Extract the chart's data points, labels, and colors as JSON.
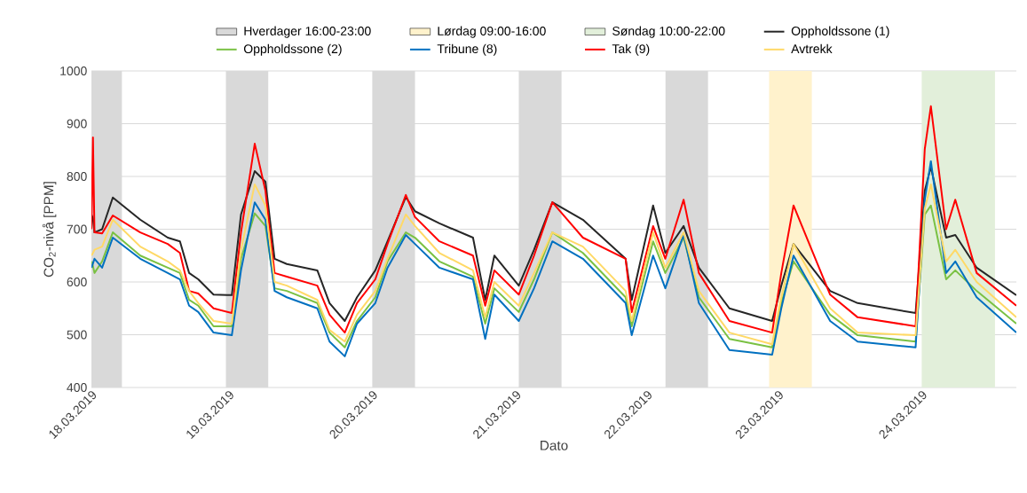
{
  "chart_data": {
    "type": "line",
    "xlabel": "Dato",
    "ylabel": "CO$_{2}$-nivå [PPM]",
    "x": [
      "2019-03-18T18:00",
      "2019-03-18T18:15",
      "2019-03-18T18:30",
      "2019-03-18T19:45",
      "2019-03-18T21:30",
      "2019-03-19T02:00",
      "2019-03-19T06:30",
      "2019-03-19T08:30",
      "2019-03-19T10:00",
      "2019-03-19T11:30",
      "2019-03-19T14:00",
      "2019-03-19T17:00",
      "2019-03-19T18:30",
      "2019-03-19T20:45",
      "2019-03-19T22:30",
      "2019-03-20T00:00",
      "2019-03-20T02:00",
      "2019-03-20T07:00",
      "2019-03-20T09:00",
      "2019-03-20T11:30",
      "2019-03-20T13:30",
      "2019-03-20T16:30",
      "2019-03-20T18:30",
      "2019-03-20T21:30",
      "2019-03-20T23:00",
      "2019-03-21T03:00",
      "2019-03-21T08:30",
      "2019-03-21T10:30",
      "2019-03-21T12:00",
      "2019-03-21T16:00",
      "2019-03-21T18:30",
      "2019-03-21T21:30",
      "2019-03-22T02:30",
      "2019-03-22T09:30",
      "2019-03-22T10:30",
      "2019-03-22T14:00",
      "2019-03-22T16:00",
      "2019-03-22T19:00",
      "2019-03-22T21:30",
      "2019-03-23T02:30",
      "2019-03-23T09:30",
      "2019-03-23T11:00",
      "2019-03-23T13:00",
      "2019-03-23T19:00",
      "2019-03-23T23:30",
      "2019-03-24T09:00",
      "2019-03-24T10:30",
      "2019-03-24T11:30",
      "2019-03-24T14:00",
      "2019-03-24T15:30",
      "2019-03-24T19:00",
      "2019-03-25T01:30"
    ],
    "series": [
      {
        "name": "Oppholdssone (1)",
        "color": "#262626",
        "values": [
          728,
          720,
          694,
          700,
          760,
          718,
          684,
          677,
          617,
          605,
          576,
          575,
          728,
          810,
          790,
          644,
          634,
          622,
          560,
          526,
          571,
          622,
          677,
          761,
          734,
          711,
          684,
          566,
          650,
          593,
          661,
          751,
          718,
          644,
          566,
          745,
          655,
          706,
          627,
          550,
          526,
          593,
          672,
          583,
          560,
          541,
          773,
          818,
          684,
          689,
          627,
          575
        ]
      },
      {
        "name": "Oppholdssone (2)",
        "color": "#7ac143",
        "values": [
          639,
          630,
          617,
          639,
          694,
          650,
          627,
          617,
          566,
          555,
          516,
          516,
          644,
          730,
          706,
          588,
          583,
          560,
          504,
          476,
          526,
          571,
          639,
          694,
          684,
          639,
          610,
          521,
          588,
          543,
          605,
          694,
          655,
          571,
          516,
          677,
          617,
          684,
          571,
          492,
          476,
          560,
          639,
          538,
          499,
          487,
          728,
          745,
          605,
          622,
          583,
          521
        ]
      },
      {
        "name": "Tribune (8)",
        "color": "#0070c0",
        "values": [
          627,
          635,
          644,
          627,
          684,
          644,
          617,
          605,
          555,
          543,
          504,
          499,
          622,
          751,
          718,
          583,
          571,
          550,
          487,
          459,
          521,
          560,
          627,
          689,
          672,
          627,
          605,
          492,
          576,
          526,
          588,
          677,
          644,
          560,
          499,
          650,
          588,
          690,
          560,
          471,
          462,
          550,
          650,
          526,
          487,
          476,
          756,
          829,
          617,
          639,
          571,
          504
        ]
      },
      {
        "name": "Tak (9)",
        "color": "#ff0000",
        "values": [
          700,
          874,
          694,
          692,
          726,
          694,
          672,
          655,
          583,
          578,
          550,
          541,
          694,
          862,
          773,
          617,
          610,
          593,
          538,
          504,
          560,
          605,
          672,
          765,
          723,
          677,
          650,
          555,
          622,
          576,
          650,
          751,
          684,
          644,
          543,
          706,
          644,
          756,
          617,
          526,
          504,
          617,
          745,
          576,
          533,
          516,
          852,
          933,
          700,
          756,
          617,
          555
        ]
      },
      {
        "name": "Avtrekk",
        "color": "#ffd966",
        "values": [
          650,
          655,
          661,
          667,
          718,
          667,
          639,
          622,
          583,
          560,
          526,
          521,
          661,
          785,
          745,
          600,
          593,
          566,
          509,
          487,
          538,
          583,
          644,
          728,
          706,
          655,
          622,
          533,
          600,
          555,
          617,
          694,
          667,
          583,
          526,
          694,
          627,
          694,
          583,
          504,
          482,
          571,
          672,
          550,
          504,
          499,
          739,
          785,
          639,
          661,
          600,
          533
        ]
      }
    ],
    "bands": [
      {
        "axis": "x",
        "from": "2019-03-18T18:00",
        "to": "2019-03-18T23:00",
        "label": "Hverdager 16:00-23:00",
        "color": "#d9d9d9"
      },
      {
        "axis": "x",
        "from": "2019-03-19T16:00",
        "to": "2019-03-19T23:00",
        "color": "#d9d9d9"
      },
      {
        "axis": "x",
        "from": "2019-03-20T16:00",
        "to": "2019-03-20T23:00",
        "color": "#d9d9d9"
      },
      {
        "axis": "x",
        "from": "2019-03-21T16:00",
        "to": "2019-03-21T23:00",
        "color": "#d9d9d9"
      },
      {
        "axis": "x",
        "from": "2019-03-22T16:00",
        "to": "2019-03-22T23:00",
        "color": "#d9d9d9"
      },
      {
        "axis": "x",
        "from": "2019-03-23T09:00",
        "to": "2019-03-23T16:00",
        "label": "Lørdag 09:00-16:00",
        "color": "#fff2cc"
      },
      {
        "axis": "x",
        "from": "2019-03-24T10:00",
        "to": "2019-03-24T22:00",
        "label": "Søndag 10:00-22:00",
        "color": "#e2efda"
      }
    ],
    "xlim": [
      "2019-03-18T18:00",
      "2019-03-25T01:30"
    ],
    "xticks": [
      {
        "value": "2019-03-18T18:00",
        "label": "18.03.2019"
      },
      {
        "value": "2019-03-19T16:30",
        "label": "19.03.2019"
      },
      {
        "value": "2019-03-20T16:00",
        "label": "20.03.2019"
      },
      {
        "value": "2019-03-21T15:30",
        "label": "21.03.2019"
      },
      {
        "value": "2019-03-22T13:00",
        "label": "22.03.2019"
      },
      {
        "value": "2019-03-23T10:30",
        "label": "23.03.2019"
      },
      {
        "value": "2019-03-24T10:00",
        "label": "24.03.2019"
      }
    ],
    "ylim": [
      400,
      1000
    ],
    "yticks": [
      400,
      500,
      600,
      700,
      800,
      900,
      1000
    ],
    "grid": "y",
    "legend": "top",
    "marker": "none",
    "line_style": "solid"
  }
}
